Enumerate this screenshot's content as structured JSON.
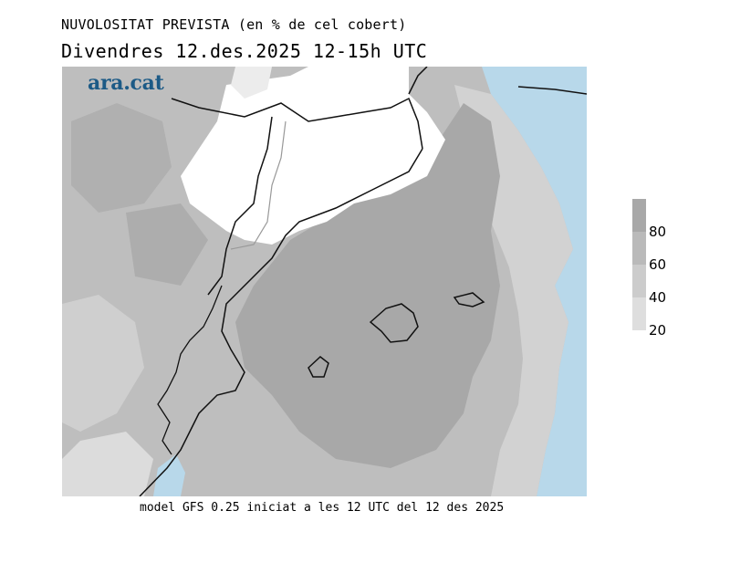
{
  "header": {
    "title": "NUVOLOSITAT PREVISTA (en % de cel cobert)",
    "subtitle": "Divendres  12.des.2025  12-15h UTC"
  },
  "brand": {
    "logo_text": "ara.cat",
    "color": "#1c5a86"
  },
  "legend": {
    "ticks": [
      "80",
      "60",
      "40",
      "20"
    ],
    "colors": [
      "#a8a8a8",
      "#bababa",
      "#cccccc",
      "#dedede"
    ],
    "top_color": "#a8a8a8"
  },
  "map": {
    "sea_color": "#b8d8ea",
    "clear_sky_color": "#ffffff",
    "coastline_color": "#111111"
  },
  "footer": {
    "text": "model GFS 0.25 iniciat a les 12 UTC del 12 des 2025"
  }
}
